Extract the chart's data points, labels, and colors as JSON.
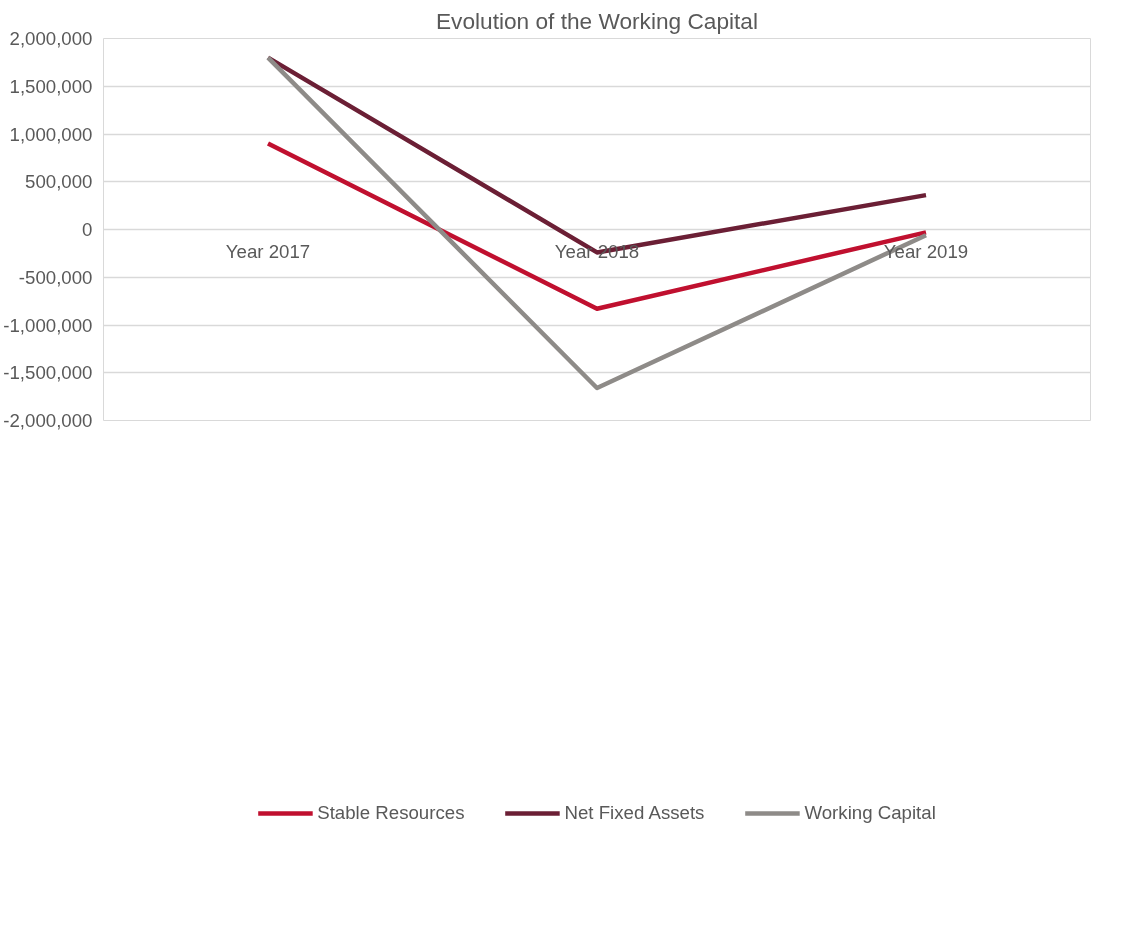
{
  "chart_data": {
    "type": "line",
    "title": "Evolution of the Working Capital",
    "categories": [
      "Year 2017",
      "Year 2018",
      "Year 2019"
    ],
    "series": [
      {
        "name": "Stable Resources",
        "color": "#c0102f",
        "values": [
          900000,
          -830000,
          -30000
        ]
      },
      {
        "name": "Net Fixed Assets",
        "color": "#6b1f35",
        "values": [
          1800000,
          -240000,
          360000
        ]
      },
      {
        "name": "Working Capital",
        "color": "#8e8b88",
        "values": [
          1800000,
          -1660000,
          -60000
        ]
      }
    ],
    "ylim": [
      -2000000,
      2000000
    ],
    "yticks": [
      {
        "value": -2000000,
        "label": "-2,000,000"
      },
      {
        "value": -1500000,
        "label": "-1,500,000"
      },
      {
        "value": -1000000,
        "label": "-1,000,000"
      },
      {
        "value": -500000,
        "label": "-500,000"
      },
      0,
      {
        "value": 500000,
        "label": "500,000"
      },
      {
        "value": 1000000,
        "label": "1,000,000"
      },
      {
        "value": 1500000,
        "label": "1,500,000"
      },
      {
        "value": 2000000,
        "label": "2,000,000"
      }
    ],
    "grid": "y",
    "legend": "bottom",
    "marker": "none",
    "line_style": "solid"
  }
}
